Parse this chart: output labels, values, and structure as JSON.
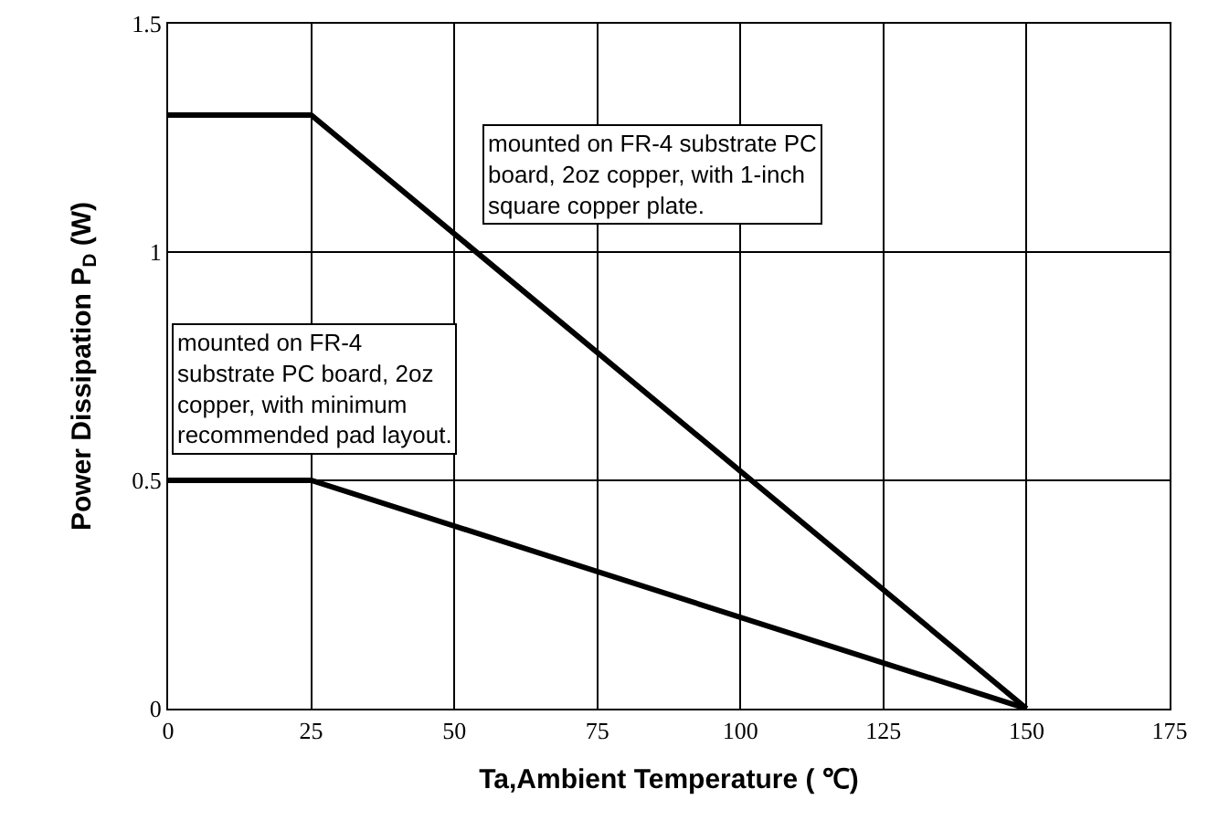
{
  "chart_data": {
    "type": "line",
    "xlabel": "Ta,Ambient Temperature ( ℃)",
    "ylabel": "Power Dissipation P$_{D}$ (W)",
    "x": [
      0,
      25,
      150
    ],
    "series": [
      {
        "color": "#000000",
        "values": [
          1.3,
          1.3,
          0
        ]
      },
      {
        "color": "#000000",
        "values": [
          0.5,
          0.5,
          0
        ]
      }
    ],
    "xlim": [
      0,
      175
    ],
    "xticks": [
      0,
      25,
      50,
      75,
      100,
      125,
      150,
      175
    ],
    "ylim": [
      0,
      1.5
    ],
    "yticks": [
      0,
      0.5,
      1,
      1.5
    ],
    "grid": true,
    "marker": "none",
    "line_style": "solid",
    "annotations": [
      "mounted on FR-4 substrate PC board, 2oz copper, with 1-inch square copper plate.",
      "mounted on FR-4 substrate PC board, 2oz copper, with minimum recommended pad layout."
    ]
  }
}
